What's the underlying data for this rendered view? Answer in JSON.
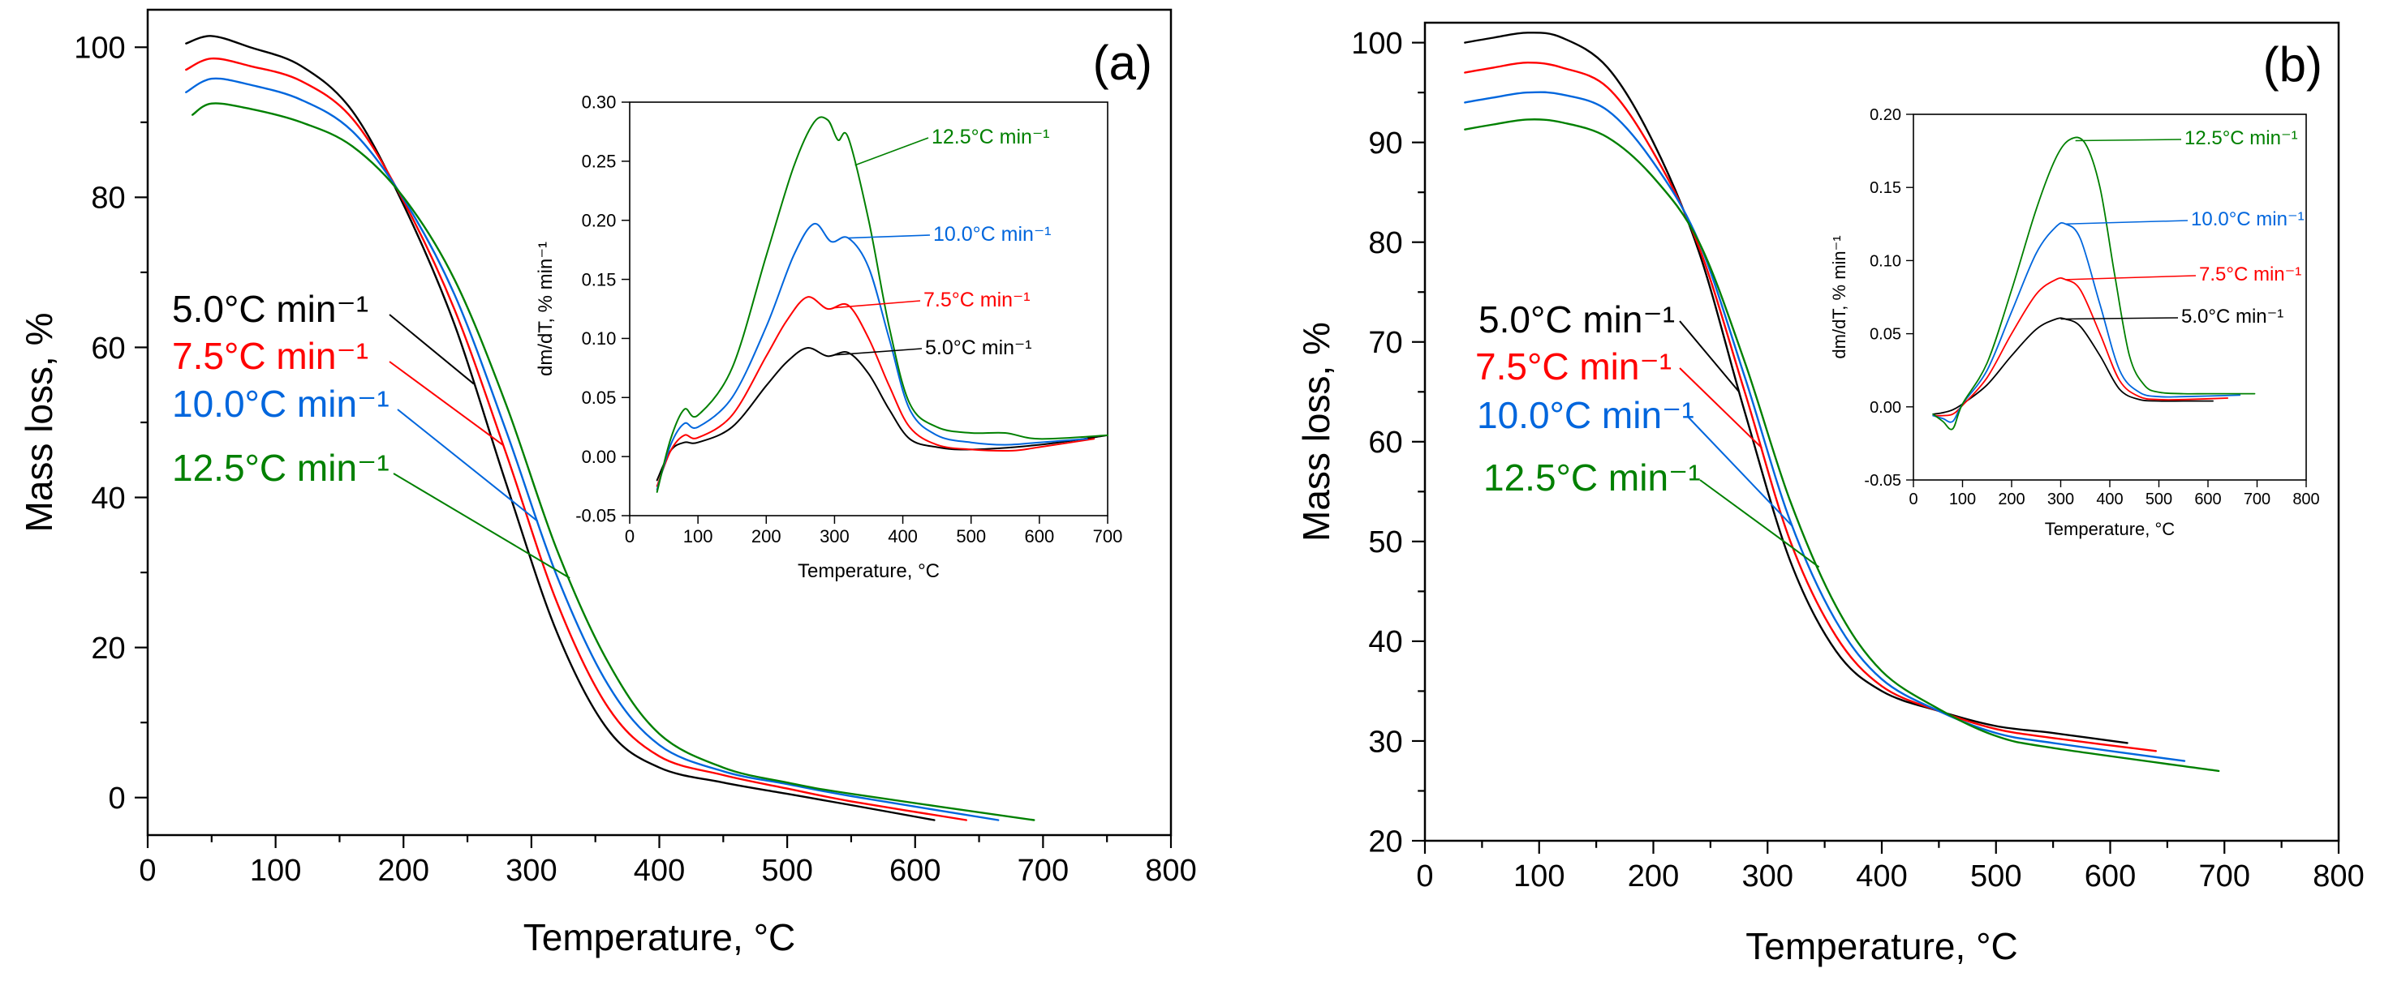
{
  "chart_data": [
    {
      "id": "a",
      "type": "line",
      "panel_label": "(a)",
      "xlabel": "Temperature, °C",
      "ylabel": "Mass loss, %",
      "xlim": [
        0,
        800
      ],
      "ylim": [
        -5,
        105
      ],
      "xticks": [
        0,
        100,
        200,
        300,
        400,
        500,
        600,
        700,
        800
      ],
      "yticks": [
        0,
        20,
        40,
        60,
        80,
        100
      ],
      "legend": [
        "5.0°C min⁻¹",
        "7.5°C min⁻¹",
        "10.0°C min⁻¹",
        "12.5°C min⁻¹"
      ],
      "series": [
        {
          "name": "5.0°C min⁻¹",
          "color": "#000000",
          "x": [
            30,
            50,
            80,
            120,
            160,
            200,
            240,
            280,
            320,
            360,
            400,
            450,
            500,
            550,
            615
          ],
          "y": [
            100.5,
            101.5,
            100,
            97.5,
            91.5,
            79,
            63,
            42,
            22,
            9,
            4,
            2,
            0.5,
            -1,
            -3
          ]
        },
        {
          "name": "7.5°C min⁻¹",
          "color": "#ff0000",
          "x": [
            30,
            50,
            80,
            120,
            160,
            200,
            240,
            280,
            320,
            360,
            400,
            450,
            500,
            550,
            640
          ],
          "y": [
            97,
            98.5,
            97.5,
            95.5,
            90.5,
            79.5,
            65,
            46,
            26,
            12,
            5.5,
            3,
            1.2,
            -0.5,
            -3
          ]
        },
        {
          "name": "10.0°C min⁻¹",
          "color": "#0066dd",
          "x": [
            30,
            50,
            80,
            120,
            160,
            200,
            240,
            280,
            320,
            360,
            400,
            450,
            500,
            550,
            665
          ],
          "y": [
            94,
            95.8,
            95,
            93,
            88.8,
            79.8,
            67,
            49,
            29.5,
            15,
            7,
            3.5,
            1.8,
            0.2,
            -3
          ]
        },
        {
          "name": "12.5°C min⁻¹",
          "color": "#008000",
          "x": [
            35,
            50,
            80,
            120,
            160,
            200,
            240,
            280,
            320,
            360,
            400,
            450,
            500,
            550,
            693
          ],
          "y": [
            91,
            92.5,
            91.8,
            90,
            86.8,
            80,
            69,
            52.5,
            33,
            18,
            8.5,
            4,
            2,
            0.5,
            -3
          ]
        }
      ],
      "inset": {
        "type": "line",
        "xlabel": "Temperature, °C",
        "ylabel": "dm/dT, % min⁻¹",
        "xlim": [
          0,
          700
        ],
        "ylim": [
          -0.05,
          0.3
        ],
        "xticks": [
          0,
          100,
          200,
          300,
          400,
          500,
          600,
          700
        ],
        "yticks": [
          -0.05,
          0.0,
          0.05,
          0.1,
          0.15,
          0.2,
          0.25,
          0.3
        ],
        "ytick_labels": [
          "-0.05",
          "0.00",
          "0.05",
          "0.10",
          "0.15",
          "0.20",
          "0.25",
          "0.30"
        ],
        "labels": [
          "5.0°C min⁻¹",
          "7.5°C min⁻¹",
          "10.0°C min⁻¹",
          "12.5°C min⁻¹"
        ],
        "series": [
          {
            "name": "5.0°C min⁻¹",
            "color": "#000000",
            "x": [
              40,
              60,
              80,
              100,
              150,
              200,
              230,
              260,
              290,
              320,
              350,
              380,
              410,
              450,
              500,
              600,
              700
            ],
            "y": [
              -0.02,
              0.005,
              0.012,
              0.012,
              0.025,
              0.06,
              0.08,
              0.092,
              0.085,
              0.088,
              0.07,
              0.04,
              0.015,
              0.008,
              0.006,
              0.01,
              0.018
            ]
          },
          {
            "name": "7.5°C min⁻¹",
            "color": "#ff0000",
            "x": [
              40,
              60,
              80,
              100,
              150,
              200,
              230,
              260,
              290,
              320,
              350,
              380,
              410,
              450,
              500,
              560,
              600,
              680
            ],
            "y": [
              -0.025,
              0.005,
              0.018,
              0.016,
              0.035,
              0.085,
              0.115,
              0.135,
              0.125,
              0.128,
              0.1,
              0.06,
              0.025,
              0.01,
              0.006,
              0.005,
              0.008,
              0.015
            ]
          },
          {
            "name": "10.0°C min⁻¹",
            "color": "#0066dd",
            "x": [
              40,
              60,
              80,
              100,
              150,
              200,
              240,
              270,
              295,
              320,
              350,
              380,
              410,
              450,
              500,
              550,
              600,
              670
            ],
            "y": [
              -0.028,
              0.01,
              0.028,
              0.025,
              0.05,
              0.11,
              0.17,
              0.197,
              0.182,
              0.185,
              0.16,
              0.1,
              0.04,
              0.018,
              0.012,
              0.01,
              0.012,
              0.015
            ]
          },
          {
            "name": "12.5°C min⁻¹",
            "color": "#008000",
            "x": [
              40,
              60,
              80,
              100,
              150,
              200,
              240,
              270,
              290,
              305,
              320,
              350,
              380,
              410,
              450,
              500,
              550,
              600,
              700
            ],
            "y": [
              -0.03,
              0.015,
              0.04,
              0.035,
              0.075,
              0.17,
              0.245,
              0.283,
              0.285,
              0.268,
              0.27,
              0.2,
              0.11,
              0.045,
              0.025,
              0.02,
              0.02,
              0.015,
              0.018
            ]
          }
        ]
      }
    },
    {
      "id": "b",
      "type": "line",
      "panel_label": "(b)",
      "xlabel": "Temperature, °C",
      "ylabel": "Mass loss, %",
      "xlim": [
        0,
        800
      ],
      "ylim": [
        20,
        102
      ],
      "xticks": [
        0,
        100,
        200,
        300,
        400,
        500,
        600,
        700,
        800
      ],
      "yticks": [
        20,
        30,
        40,
        50,
        60,
        70,
        80,
        90,
        100
      ],
      "legend": [
        "5.0°C min⁻¹",
        "7.5°C min⁻¹",
        "10.0°C min⁻¹",
        "12.5°C min⁻¹"
      ],
      "series": [
        {
          "name": "5.0°C min⁻¹",
          "color": "#000000",
          "x": [
            35,
            60,
            90,
            120,
            160,
            200,
            240,
            280,
            320,
            360,
            400,
            450,
            500,
            550,
            615
          ],
          "y": [
            100,
            100.5,
            101,
            100.5,
            97.5,
            90,
            79,
            63,
            48,
            39,
            35,
            33,
            31.5,
            30.8,
            29.8
          ]
        },
        {
          "name": "7.5°C min⁻¹",
          "color": "#ff0000",
          "x": [
            35,
            60,
            90,
            120,
            160,
            200,
            240,
            280,
            320,
            360,
            400,
            450,
            500,
            550,
            640
          ],
          "y": [
            97,
            97.5,
            98,
            97.5,
            95.5,
            89,
            79.5,
            65,
            50,
            40.5,
            35.5,
            33,
            31.2,
            30.3,
            29
          ]
        },
        {
          "name": "10.0°C min⁻¹",
          "color": "#0066dd",
          "x": [
            35,
            60,
            90,
            120,
            160,
            200,
            240,
            280,
            320,
            360,
            400,
            450,
            500,
            550,
            665
          ],
          "y": [
            94,
            94.5,
            95,
            94.8,
            93.2,
            88,
            80,
            66.5,
            52,
            42,
            36.2,
            33,
            30.8,
            29.8,
            28
          ]
        },
        {
          "name": "12.5°C min⁻¹",
          "color": "#008000",
          "x": [
            35,
            60,
            90,
            120,
            160,
            200,
            240,
            280,
            320,
            360,
            400,
            450,
            500,
            550,
            695
          ],
          "y": [
            91.3,
            91.8,
            92.3,
            92,
            90.5,
            86.5,
            80,
            68,
            54,
            43.5,
            37,
            33.2,
            30.5,
            29.3,
            27
          ]
        }
      ],
      "inset": {
        "type": "line",
        "xlabel": "Temperature, °C",
        "ylabel": "dm/dT, % min⁻¹",
        "xlim": [
          0,
          800
        ],
        "ylim": [
          -0.05,
          0.2
        ],
        "xticks": [
          0,
          100,
          200,
          300,
          400,
          500,
          600,
          700,
          800
        ],
        "yticks": [
          -0.05,
          0.0,
          0.05,
          0.1,
          0.15,
          0.2
        ],
        "ytick_labels": [
          "-0.05",
          "0.00",
          "0.05",
          "0.10",
          "0.15",
          "0.20"
        ],
        "labels": [
          "5.0°C min⁻¹",
          "7.5°C min⁻¹",
          "10.0°C min⁻¹",
          "12.5°C min⁻¹"
        ],
        "series": [
          {
            "name": "5.0°C min⁻¹",
            "color": "#000000",
            "x": [
              40,
              60,
              80,
              100,
              150,
              200,
              250,
              290,
              310,
              340,
              380,
              420,
              460,
              500,
              550,
              610
            ],
            "y": [
              -0.005,
              -0.004,
              -0.002,
              0.002,
              0.015,
              0.035,
              0.053,
              0.06,
              0.06,
              0.055,
              0.035,
              0.012,
              0.005,
              0.004,
              0.004,
              0.004
            ]
          },
          {
            "name": "7.5°C min⁻¹",
            "color": "#ff0000",
            "x": [
              40,
              60,
              80,
              100,
              150,
              200,
              250,
              290,
              310,
              340,
              380,
              420,
              460,
              500,
              550,
              640
            ],
            "y": [
              -0.006,
              -0.006,
              -0.005,
              0.001,
              0.02,
              0.05,
              0.077,
              0.087,
              0.087,
              0.08,
              0.05,
              0.018,
              0.007,
              0.005,
              0.005,
              0.006
            ]
          },
          {
            "name": "10.0°C min⁻¹",
            "color": "#0066dd",
            "x": [
              40,
              60,
              80,
              100,
              150,
              200,
              250,
              290,
              310,
              340,
              380,
              420,
              460,
              500,
              550,
              665
            ],
            "y": [
              -0.006,
              -0.008,
              -0.01,
              0.002,
              0.025,
              0.065,
              0.105,
              0.123,
              0.125,
              0.115,
              0.07,
              0.025,
              0.01,
              0.007,
              0.007,
              0.008
            ]
          },
          {
            "name": "12.5°C min⁻¹",
            "color": "#008000",
            "x": [
              40,
              60,
              80,
              100,
              150,
              200,
              250,
              290,
              320,
              350,
              380,
              410,
              440,
              470,
              500,
              550,
              600,
              695
            ],
            "y": [
              -0.005,
              -0.01,
              -0.015,
              0.002,
              0.03,
              0.08,
              0.135,
              0.17,
              0.183,
              0.18,
              0.15,
              0.09,
              0.035,
              0.015,
              0.01,
              0.009,
              0.009,
              0.009
            ]
          }
        ]
      }
    }
  ]
}
